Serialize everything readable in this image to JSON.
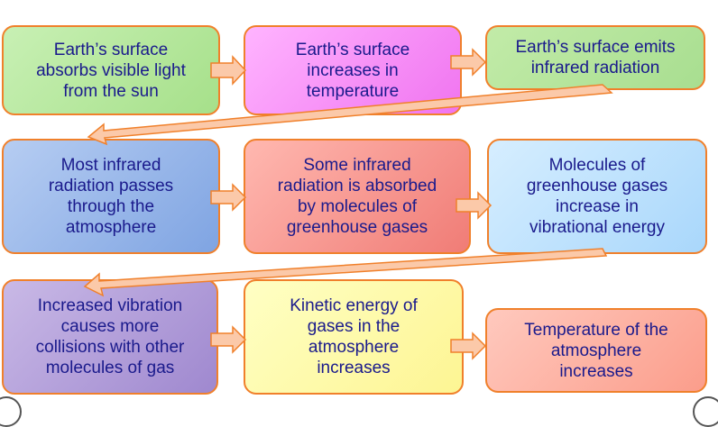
{
  "colors": {
    "border": "#f0802b",
    "arrow_fill": "#fbc9a9",
    "arrow_stroke": "#f0802b",
    "text": "#1a1a8c"
  },
  "steps": [
    {
      "text": "Earth’s surface\nabsorbs visible light\nfrom the sun"
    },
    {
      "text": "Earth’s surface\nincreases in\ntemperature"
    },
    {
      "text": "Earth’s surface emits\ninfrared radiation"
    },
    {
      "text": "Most infrared\nradiation passes\nthrough the\natmosphere"
    },
    {
      "text": "Some infrared\nradiation is absorbed\nby molecules of\ngreenhouse gases"
    },
    {
      "text": "Molecules of\ngreenhouse gases\nincrease in\nvibrational energy"
    },
    {
      "text": "Increased vibration\ncauses more\ncollisions with other\nmolecules of gas"
    },
    {
      "text": "Kinetic energy of\ngases in the\natmosphere\nincreases"
    },
    {
      "text": "Temperature of the\natmosphere\nincreases"
    }
  ]
}
